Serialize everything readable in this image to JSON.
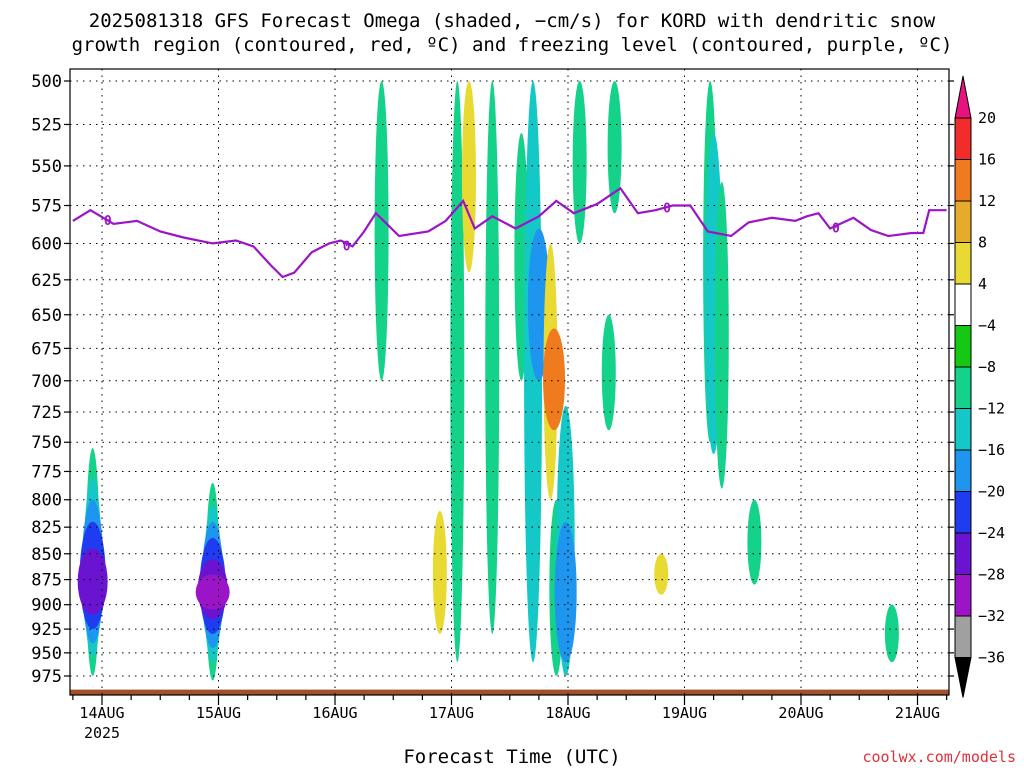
{
  "title_line1": "2025081318 GFS Forecast Omega (shaded, −cm/s) for KORD with dendritic snow",
  "title_line2": "growth region (contoured, red, ºC) and freezing level (contoured, purple, ºC)",
  "xlabel": "Forecast Time (UTC)",
  "watermark": "coolwx.com/models",
  "chart_data": {
    "type": "heatmap",
    "title": "2025081318 GFS Forecast Omega (shaded, −cm/s) for KORD with dendritic snow growth region (contoured, red, ºC) and freezing level (contoured, purple, ºC)",
    "xlabel": "Forecast Time (UTC)",
    "ylabel": "",
    "y_axis": {
      "levels_hpa": [
        500,
        525,
        550,
        575,
        600,
        625,
        650,
        675,
        700,
        725,
        750,
        775,
        800,
        825,
        850,
        875,
        900,
        925,
        950,
        975
      ],
      "range": [
        500,
        990
      ],
      "scale": "log-pressure"
    },
    "x_axis": {
      "tick_labels": [
        "14AUG",
        "15AUG",
        "16AUG",
        "17AUG",
        "18AUG",
        "19AUG",
        "20AUG",
        "21AUG"
      ],
      "tick_days": [
        14,
        15,
        16,
        17,
        18,
        19,
        20,
        21
      ],
      "year_label": "2025",
      "range_days": [
        13.75,
        21.25
      ]
    },
    "grid": true,
    "colorbar": {
      "labels": [
        20,
        16,
        12,
        8,
        4,
        -4,
        -8,
        -12,
        -16,
        -20,
        -24,
        -28,
        -32,
        -36
      ],
      "colors": [
        "#e8127e",
        "#f22b2b",
        "#ef7b1e",
        "#e6ab2b",
        "#e8da33",
        "#ffffff",
        "#14c814",
        "#14d28a",
        "#14c8c8",
        "#1e96f0",
        "#1e3cf0",
        "#6a14d2",
        "#9b14c8",
        "#a0a0a0",
        "#000000"
      ]
    },
    "freezing_level": {
      "label": "0",
      "color": "#9b14c8",
      "points": [
        [
          13.75,
          585
        ],
        [
          13.9,
          578
        ],
        [
          14.1,
          587
        ],
        [
          14.3,
          585
        ],
        [
          14.5,
          592
        ],
        [
          14.7,
          596
        ],
        [
          14.95,
          600
        ],
        [
          15.15,
          598
        ],
        [
          15.3,
          602
        ],
        [
          15.45,
          615
        ],
        [
          15.55,
          623
        ],
        [
          15.65,
          620
        ],
        [
          15.8,
          606
        ],
        [
          15.95,
          600
        ],
        [
          16.05,
          598
        ],
        [
          16.15,
          602
        ],
        [
          16.25,
          592
        ],
        [
          16.35,
          580
        ],
        [
          16.55,
          595
        ],
        [
          16.8,
          592
        ],
        [
          16.95,
          585
        ],
        [
          17.1,
          572
        ],
        [
          17.2,
          590
        ],
        [
          17.35,
          582
        ],
        [
          17.55,
          590
        ],
        [
          17.75,
          582
        ],
        [
          17.9,
          572
        ],
        [
          18.05,
          580
        ],
        [
          18.25,
          574
        ],
        [
          18.45,
          564
        ],
        [
          18.6,
          580
        ],
        [
          18.75,
          578
        ],
        [
          18.9,
          575
        ],
        [
          19.05,
          575
        ],
        [
          19.2,
          592
        ],
        [
          19.4,
          595
        ],
        [
          19.55,
          586
        ],
        [
          19.75,
          583
        ],
        [
          19.95,
          585
        ],
        [
          20.05,
          582
        ],
        [
          20.15,
          580
        ],
        [
          20.25,
          590
        ],
        [
          20.45,
          583
        ],
        [
          20.6,
          591
        ],
        [
          20.75,
          595
        ],
        [
          20.95,
          593
        ],
        [
          21.05,
          593
        ],
        [
          21.1,
          578
        ],
        [
          21.25,
          578
        ]
      ]
    },
    "omega_patches": [
      {
        "day": 13.92,
        "p_top": 755,
        "p_bottom": 975,
        "value": -8
      },
      {
        "day": 13.92,
        "p_top": 780,
        "p_bottom": 955,
        "value": -12
      },
      {
        "day": 13.92,
        "p_top": 800,
        "p_bottom": 940,
        "value": -16
      },
      {
        "day": 13.92,
        "p_top": 820,
        "p_bottom": 925,
        "value": -20
      },
      {
        "day": 13.92,
        "p_top": 845,
        "p_bottom": 910,
        "value": -24
      },
      {
        "day": 14.95,
        "p_top": 785,
        "p_bottom": 980,
        "value": -8
      },
      {
        "day": 14.95,
        "p_top": 805,
        "p_bottom": 960,
        "value": -12
      },
      {
        "day": 14.95,
        "p_top": 820,
        "p_bottom": 945,
        "value": -16
      },
      {
        "day": 14.95,
        "p_top": 835,
        "p_bottom": 930,
        "value": -20
      },
      {
        "day": 14.95,
        "p_top": 855,
        "p_bottom": 915,
        "value": -24
      },
      {
        "day": 14.95,
        "p_top": 870,
        "p_bottom": 905,
        "value": -28
      },
      {
        "day": 14.18,
        "p_top": 700,
        "p_bottom": 760,
        "value": 4
      },
      {
        "day": 15.1,
        "p_top": 740,
        "p_bottom": 800,
        "value": 4
      },
      {
        "day": 14.38,
        "p_top": 520,
        "p_bottom": 560,
        "value": 4
      },
      {
        "day": 16.05,
        "p_top": 540,
        "p_bottom": 640,
        "value": 4
      },
      {
        "day": 16.0,
        "p_top": 850,
        "p_bottom": 955,
        "value": 4
      },
      {
        "day": 16.15,
        "p_top": 600,
        "p_bottom": 700,
        "value": 4
      },
      {
        "day": 16.4,
        "p_top": 500,
        "p_bottom": 700,
        "value": -8
      },
      {
        "day": 16.55,
        "p_top": 600,
        "p_bottom": 900,
        "value": 4
      },
      {
        "day": 16.85,
        "p_top": 500,
        "p_bottom": 960,
        "value": 4
      },
      {
        "day": 16.9,
        "p_top": 810,
        "p_bottom": 930,
        "value": 8
      },
      {
        "day": 17.05,
        "p_top": 500,
        "p_bottom": 960,
        "value": -8
      },
      {
        "day": 17.15,
        "p_top": 500,
        "p_bottom": 620,
        "value": 8
      },
      {
        "day": 17.35,
        "p_top": 500,
        "p_bottom": 930,
        "value": -8
      },
      {
        "day": 17.45,
        "p_top": 560,
        "p_bottom": 700,
        "value": 4
      },
      {
        "day": 17.6,
        "p_top": 530,
        "p_bottom": 700,
        "value": -8
      },
      {
        "day": 17.7,
        "p_top": 500,
        "p_bottom": 960,
        "value": -12
      },
      {
        "day": 17.75,
        "p_top": 590,
        "p_bottom": 700,
        "value": -16
      },
      {
        "day": 17.85,
        "p_top": 600,
        "p_bottom": 800,
        "value": 8
      },
      {
        "day": 17.88,
        "p_top": 660,
        "p_bottom": 740,
        "value": 16
      },
      {
        "day": 17.9,
        "p_top": 800,
        "p_bottom": 975,
        "value": -8
      },
      {
        "day": 17.98,
        "p_top": 720,
        "p_bottom": 975,
        "value": -12
      },
      {
        "day": 17.98,
        "p_top": 820,
        "p_bottom": 960,
        "value": -16
      },
      {
        "day": 18.1,
        "p_top": 500,
        "p_bottom": 600,
        "value": -8
      },
      {
        "day": 18.4,
        "p_top": 500,
        "p_bottom": 580,
        "value": -8
      },
      {
        "day": 18.35,
        "p_top": 650,
        "p_bottom": 740,
        "value": -8
      },
      {
        "day": 18.8,
        "p_top": 580,
        "p_bottom": 600,
        "value": 4
      },
      {
        "day": 18.8,
        "p_top": 820,
        "p_bottom": 950,
        "value": 4
      },
      {
        "day": 18.8,
        "p_top": 850,
        "p_bottom": 890,
        "value": 8
      },
      {
        "day": 19.22,
        "p_top": 500,
        "p_bottom": 750,
        "value": -8
      },
      {
        "day": 19.25,
        "p_top": 530,
        "p_bottom": 760,
        "value": -12
      },
      {
        "day": 19.32,
        "p_top": 560,
        "p_bottom": 790,
        "value": -8
      },
      {
        "day": 19.45,
        "p_top": 500,
        "p_bottom": 510,
        "value": 4
      },
      {
        "day": 19.45,
        "p_top": 910,
        "p_bottom": 940,
        "value": 4
      },
      {
        "day": 19.6,
        "p_top": 800,
        "p_bottom": 880,
        "value": -8
      },
      {
        "day": 20.78,
        "p_top": 900,
        "p_bottom": 960,
        "value": -8
      },
      {
        "day": 21.0,
        "p_top": 630,
        "p_bottom": 710,
        "value": 4
      }
    ],
    "terrain": {
      "color": "#a0522d",
      "surface_hpa": 990
    }
  }
}
